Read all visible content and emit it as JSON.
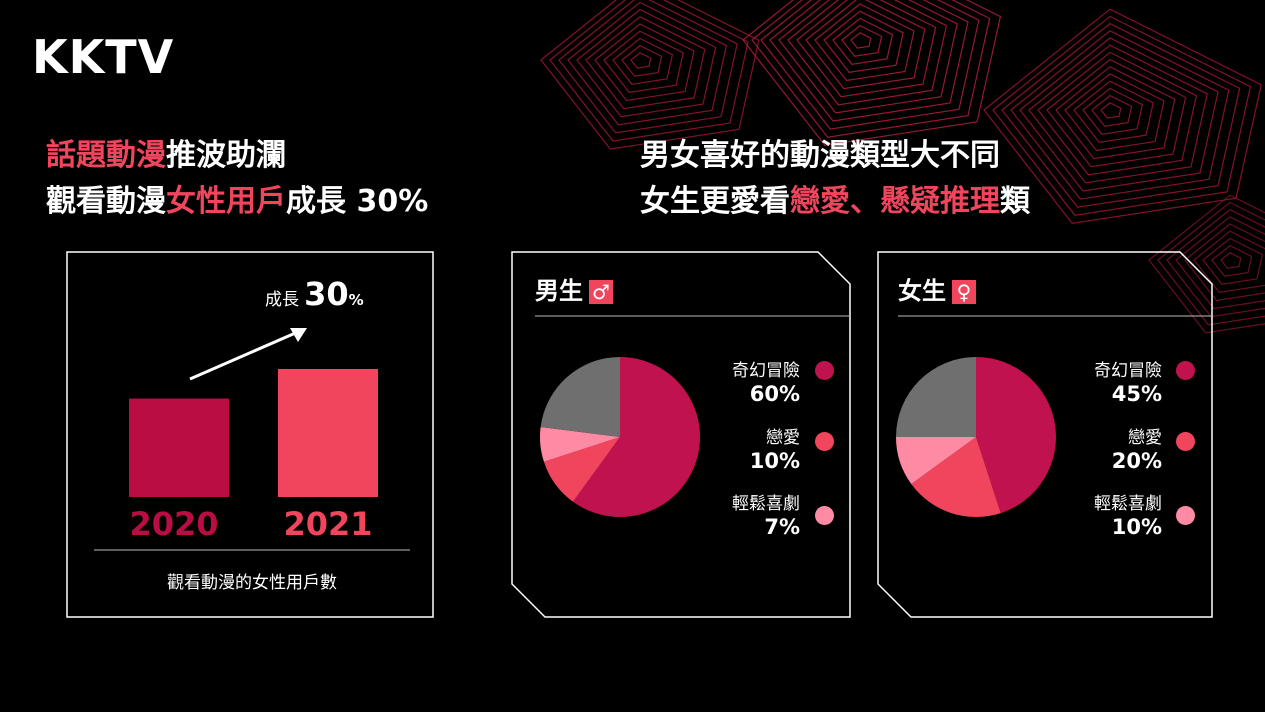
{
  "logo": "KKTV",
  "colors": {
    "background": "#000000",
    "accent": "#f0455d",
    "crimson": "#c0124f",
    "pink": "#ff8aa3",
    "gray": "#6f6f6f",
    "bar_2020": "#b90d43",
    "bar_2021": "#f0455d"
  },
  "left_headline": {
    "line1": {
      "accent": "話題動漫",
      "rest": "推波助瀾"
    },
    "line2": {
      "pre": "觀看動漫",
      "accent": "女性用戶",
      "post": "成長 30%"
    }
  },
  "right_headline": {
    "line1": "男女喜好的動漫類型大不同",
    "line2": {
      "pre": "女生更愛看",
      "accent": "戀愛、懸疑推理",
      "post": "類"
    }
  },
  "growth": {
    "prefix": "成長",
    "value": "30",
    "unit": "%"
  },
  "bar_caption": "觀看動漫的女性用戶數",
  "male_panel": {
    "title": "男生",
    "icon": "male-symbol-icon",
    "icon_glyph": "♂",
    "legend": [
      {
        "label": "奇幻冒險",
        "value": "60%",
        "color": "#c0124f"
      },
      {
        "label": "戀愛",
        "value": "10%",
        "color": "#f0455d"
      },
      {
        "label": "輕鬆喜劇",
        "value": "7%",
        "color": "#ff8aa3"
      }
    ]
  },
  "female_panel": {
    "title": "女生",
    "icon": "female-symbol-icon",
    "icon_glyph": "♀",
    "legend": [
      {
        "label": "奇幻冒險",
        "value": "45%",
        "color": "#c0124f"
      },
      {
        "label": "戀愛",
        "value": "20%",
        "color": "#f0455d"
      },
      {
        "label": "輕鬆喜劇",
        "value": "10%",
        "color": "#ff8aa3"
      }
    ]
  },
  "chart_data": [
    {
      "type": "bar",
      "categories": [
        "2020",
        "2021"
      ],
      "values": [
        100,
        130
      ],
      "title": "",
      "xlabel": "觀看動漫的女性用戶數",
      "ylabel": "",
      "annotation": "成長 30%",
      "colors": [
        "#b90d43",
        "#f0455d"
      ]
    },
    {
      "type": "pie",
      "title": "男生",
      "categories": [
        "奇幻冒險",
        "戀愛",
        "輕鬆喜劇",
        ""
      ],
      "values": [
        60,
        10,
        7,
        23
      ],
      "colors": [
        "#c0124f",
        "#f0455d",
        "#ff8aa3",
        "#6f6f6f"
      ]
    },
    {
      "type": "pie",
      "title": "女生",
      "categories": [
        "奇幻冒險",
        "戀愛",
        "輕鬆喜劇",
        ""
      ],
      "values": [
        45,
        20,
        10,
        25
      ],
      "colors": [
        "#c0124f",
        "#f0455d",
        "#ff8aa3",
        "#6f6f6f"
      ]
    }
  ]
}
